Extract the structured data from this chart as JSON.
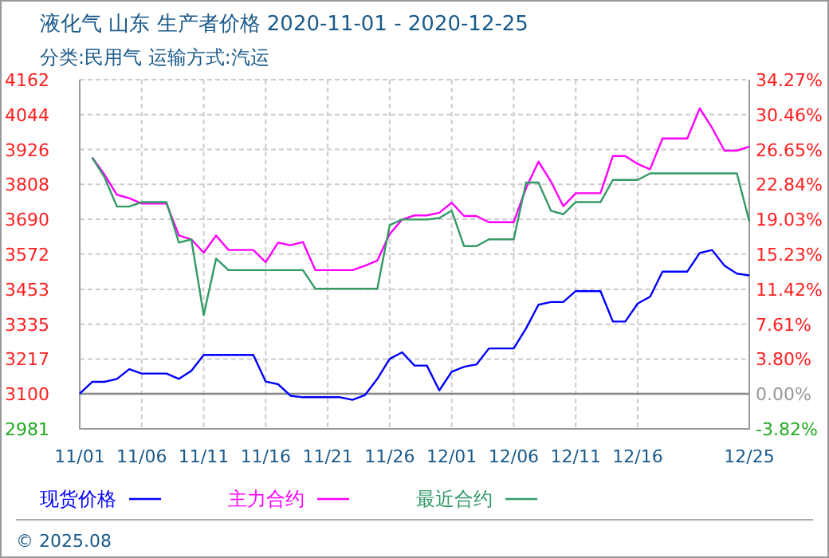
{
  "chart_data": {
    "type": "line",
    "title": "液化气 山东 生产者价格 2020-11-01 - 2020-12-25",
    "subtitle": "分类:民用气 运输方式:汽运",
    "x": [
      "2020-11-01",
      "2020-11-02",
      "2020-11-03",
      "2020-11-04",
      "2020-11-05",
      "2020-11-06",
      "2020-11-07",
      "2020-11-08",
      "2020-11-09",
      "2020-11-10",
      "2020-11-11",
      "2020-11-12",
      "2020-11-13",
      "2020-11-14",
      "2020-11-15",
      "2020-11-16",
      "2020-11-17",
      "2020-11-18",
      "2020-11-19",
      "2020-11-20",
      "2020-11-21",
      "2020-11-22",
      "2020-11-23",
      "2020-11-24",
      "2020-11-25",
      "2020-11-26",
      "2020-11-27",
      "2020-11-28",
      "2020-11-29",
      "2020-11-30",
      "2020-12-01",
      "2020-12-02",
      "2020-12-03",
      "2020-12-04",
      "2020-12-05",
      "2020-12-06",
      "2020-12-07",
      "2020-12-08",
      "2020-12-09",
      "2020-12-10",
      "2020-12-11",
      "2020-12-12",
      "2020-12-13",
      "2020-12-14",
      "2020-12-15",
      "2020-12-16",
      "2020-12-17",
      "2020-12-18",
      "2020-12-19",
      "2020-12-20",
      "2020-12-21",
      "2020-12-22",
      "2020-12-23",
      "2020-12-24",
      "2020-12-25"
    ],
    "series": [
      {
        "name": "现货价格",
        "color": "#0000ff",
        "values": [
          3100,
          3140,
          3140,
          3150,
          3183,
          3168,
          3168,
          3168,
          3150,
          3177,
          3231,
          3231,
          3231,
          3231,
          3231,
          3141,
          3132,
          3093,
          3088,
          3088,
          3088,
          3088,
          3079,
          3095,
          3150,
          3218,
          3240,
          3195,
          3195,
          3111,
          3174,
          3191,
          3199,
          3253,
          3253,
          3253,
          3321,
          3401,
          3410,
          3410,
          3447,
          3447,
          3447,
          3344,
          3344,
          3405,
          3428,
          3513,
          3513,
          3513,
          3576,
          3586,
          3533,
          3506,
          3500
        ]
      },
      {
        "name": "主力合约",
        "color": "#ff00ff",
        "values": [
          null,
          3899,
          3841,
          3773,
          3761,
          3743,
          3743,
          3743,
          3635,
          3622,
          3577,
          3635,
          3586,
          3586,
          3586,
          3545,
          3611,
          3602,
          3613,
          3518,
          3518,
          3518,
          3518,
          3533,
          3550,
          3640,
          3689,
          3703,
          3703,
          3712,
          3746,
          3701,
          3701,
          3680,
          3680,
          3680,
          3796,
          3885,
          3818,
          3734,
          3778,
          3778,
          3778,
          3904,
          3904,
          3877,
          3859,
          3963,
          3963,
          3963,
          4065,
          3999,
          3922,
          3922,
          3936
        ]
      },
      {
        "name": "最近合约",
        "color": "#339966",
        "values": [
          null,
          3899,
          3832,
          3733,
          3733,
          3748,
          3748,
          3748,
          3611,
          3622,
          3366,
          3557,
          3518,
          3518,
          3518,
          3518,
          3518,
          3518,
          3518,
          3455,
          3455,
          3455,
          3455,
          3455,
          3455,
          3670,
          3689,
          3689,
          3689,
          3694,
          3719,
          3599,
          3599,
          3622,
          3622,
          3622,
          3814,
          3814,
          3719,
          3707,
          3748,
          3748,
          3748,
          3823,
          3823,
          3823,
          3845,
          3845,
          3845,
          3845,
          3845,
          3845,
          3845,
          3845,
          3683
        ]
      }
    ],
    "xlim": [
      "2020-11-01",
      "2020-12-25"
    ],
    "xticks": [
      {
        "value": "2020-11-01",
        "label": "11/01"
      },
      {
        "value": "2020-11-06",
        "label": "11/06"
      },
      {
        "value": "2020-11-11",
        "label": "11/11"
      },
      {
        "value": "2020-11-16",
        "label": "11/16"
      },
      {
        "value": "2020-11-21",
        "label": "11/21"
      },
      {
        "value": "2020-11-26",
        "label": "11/26"
      },
      {
        "value": "2020-12-01",
        "label": "12/01"
      },
      {
        "value": "2020-12-06",
        "label": "12/06"
      },
      {
        "value": "2020-12-11",
        "label": "12/11"
      },
      {
        "value": "2020-12-16",
        "label": "12/16"
      },
      {
        "value": "2020-12-25",
        "label": "12/25"
      }
    ],
    "ylim": [
      2981,
      4162
    ],
    "yticks": [
      2981,
      3100,
      3217,
      3335,
      3453,
      3572,
      3690,
      3808,
      3926,
      4044,
      4162
    ],
    "y2lim": [
      -3.82,
      34.27
    ],
    "y2ticks": [
      {
        "value": -3.82,
        "label": "-3.82%"
      },
      {
        "value": 0,
        "label": "0.00%"
      },
      {
        "value": 3.8,
        "label": "3.80%"
      },
      {
        "value": 7.61,
        "label": "7.61%"
      },
      {
        "value": 11.42,
        "label": "11.42%"
      },
      {
        "value": 15.23,
        "label": "15.23%"
      },
      {
        "value": 19.03,
        "label": "19.03%"
      },
      {
        "value": 22.84,
        "label": "22.84%"
      },
      {
        "value": 26.65,
        "label": "26.65%"
      },
      {
        "value": 30.46,
        "label": "30.46%"
      },
      {
        "value": 34.27,
        "label": "34.27%"
      }
    ],
    "ref_lines": [
      {
        "axis": "y2",
        "value": 0,
        "color": "#888888",
        "line_style": "solid"
      }
    ],
    "grid": true,
    "legend": "bottom",
    "line_style": "solid",
    "annotations": [
      "© 2025.08"
    ]
  }
}
